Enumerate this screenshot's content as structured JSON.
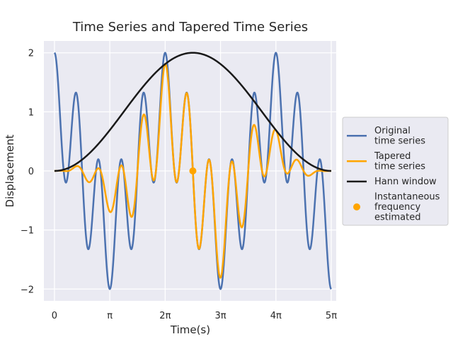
{
  "chart_data": {
    "type": "line",
    "title": "Time Series and Tapered Time Series",
    "xlabel": "Time(s)",
    "ylabel": "Displacement",
    "xlim": [
      -0.6,
      15.99
    ],
    "ylim": [
      -2.2,
      2.2
    ],
    "x_ticks": [
      {
        "value": 0,
        "label": "0"
      },
      {
        "value": 3.14159,
        "label": "π"
      },
      {
        "value": 6.28319,
        "label": "2π"
      },
      {
        "value": 9.42478,
        "label": "3π"
      },
      {
        "value": 12.56637,
        "label": "4π"
      },
      {
        "value": 15.70796,
        "label": "5π"
      }
    ],
    "y_ticks": [
      {
        "value": -2,
        "label": "−2"
      },
      {
        "value": -1,
        "label": "−1"
      },
      {
        "value": 0,
        "label": "0"
      },
      {
        "value": 1,
        "label": "1"
      },
      {
        "value": 2,
        "label": "2"
      }
    ],
    "grid": true,
    "legend_position": "right-outside",
    "x_range": [
      0,
      15.70796
    ],
    "samples": 600,
    "series": [
      {
        "name": "Original\ntime series",
        "color": "#4c72b0",
        "formula": "cos(x) + cos(5x)",
        "width": 2.5
      },
      {
        "name": "Tapered\ntime series",
        "color": "#ffa500",
        "formula": "(cos(x) + cos(5x)) * hann",
        "width": 2.5
      },
      {
        "name": "Hann window",
        "color": "#1a1a1a",
        "formula": "1 - cos(2*pi*x/(5*pi))",
        "width": 2.5
      }
    ],
    "markers": [
      {
        "name": "Instantaneous\nfrequency\nestimated",
        "color": "#ffa500",
        "x": 7.85398,
        "y": 0
      }
    ]
  },
  "colors": {
    "plot_background": "#eaeaf2",
    "grid": "#ffffff",
    "legend_background": "#eaeaf2",
    "legend_border": "#cccccc"
  }
}
